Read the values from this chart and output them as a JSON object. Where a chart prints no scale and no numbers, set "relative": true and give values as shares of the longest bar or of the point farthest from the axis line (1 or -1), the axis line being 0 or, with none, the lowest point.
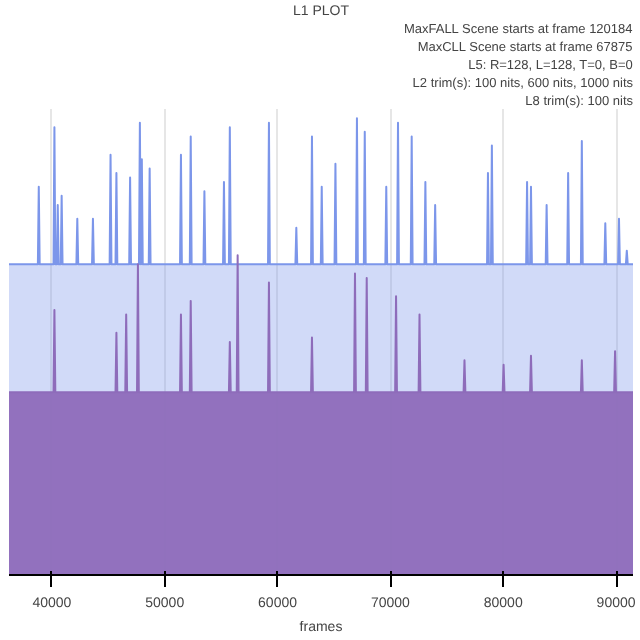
{
  "chart_data": {
    "type": "area",
    "title": "L1 PLOT",
    "xlabel": "frames",
    "relative": true,
    "grid": "x",
    "annotations": [
      "MaxFALL Scene starts at frame 120184",
      "MaxCLL Scene starts at frame 67875",
      "L5: R=128, L=128, T=0, B=0",
      "L2 trim(s): 100 nits, 600 nits, 1000 nits",
      "L8 trim(s): 100 nits"
    ],
    "xlim": [
      36200,
      91500
    ],
    "xticks": [
      40000,
      50000,
      60000,
      70000,
      80000,
      90000
    ],
    "series": [
      {
        "color": "#7c96ea",
        "x": [
          36200,
          38759,
          38839,
          38919,
          40145,
          40225,
          40305,
          40440,
          40520,
          40600,
          40786,
          40866,
          40946,
          42173,
          42253,
          42333,
          43559,
          43639,
          43719,
          45119,
          45199,
          45279,
          45639,
          45719,
          45799,
          46852,
          46932,
          47012,
          47719,
          47799,
          47879,
          47892,
          47972,
          48052,
          48585,
          48665,
          48745,
          51358,
          51438,
          51518,
          52224,
          52304,
          52384,
          53437,
          53517,
          53597,
          55170,
          55250,
          55330,
          55690,
          55770,
          55850,
          59156,
          59236,
          59316,
          61583,
          61663,
          61743,
          62969,
          63049,
          63129,
          63835,
          63915,
          63995,
          65049,
          65129,
          65209,
          66955,
          67035,
          67115,
          67648,
          67728,
          67808,
          69554,
          69634,
          69714,
          70594,
          70674,
          70754,
          71807,
          71887,
          71967,
          73020,
          73100,
          73180,
          73887,
          73967,
          74047,
          78566,
          78646,
          78726,
          78913,
          78993,
          79073,
          82032,
          82112,
          82192,
          82379,
          82459,
          82539,
          83765,
          83845,
          83925,
          85672,
          85752,
          85832,
          86885,
          86965,
          87045,
          88965,
          89045,
          89125,
          90178,
          90258,
          90338,
          90871,
          90951,
          91031,
          91500
        ],
        "values": [
          0.68,
          0.68,
          0.85,
          0.68,
          0.68,
          0.98,
          0.68,
          0.68,
          0.81,
          0.68,
          0.68,
          0.83,
          0.68,
          0.68,
          0.78,
          0.68,
          0.68,
          0.78,
          0.68,
          0.68,
          0.92,
          0.68,
          0.68,
          0.88,
          0.68,
          0.68,
          0.87,
          0.68,
          0.68,
          0.99,
          0.68,
          0.68,
          0.91,
          0.68,
          0.68,
          0.89,
          0.68,
          0.68,
          0.92,
          0.68,
          0.68,
          0.96,
          0.68,
          0.68,
          0.84,
          0.68,
          0.68,
          0.86,
          0.68,
          0.68,
          0.98,
          0.68,
          0.68,
          0.99,
          0.68,
          0.68,
          0.76,
          0.68,
          0.68,
          0.96,
          0.68,
          0.68,
          0.85,
          0.68,
          0.68,
          0.9,
          0.68,
          0.68,
          1.0,
          0.68,
          0.68,
          0.97,
          0.68,
          0.68,
          0.85,
          0.68,
          0.68,
          0.99,
          0.68,
          0.68,
          0.96,
          0.68,
          0.68,
          0.86,
          0.68,
          0.68,
          0.81,
          0.68,
          0.68,
          0.88,
          0.68,
          0.68,
          0.94,
          0.68,
          0.68,
          0.86,
          0.68,
          0.68,
          0.85,
          0.68,
          0.68,
          0.81,
          0.68,
          0.68,
          0.88,
          0.68,
          0.68,
          0.95,
          0.68,
          0.68,
          0.77,
          0.68,
          0.68,
          0.78,
          0.68,
          0.68,
          0.71,
          0.68,
          0.68
        ]
      },
      {
        "color": "#8e6cba",
        "x": [
          36200,
          40145,
          40225,
          40305,
          45639,
          45719,
          45799,
          46505,
          46585,
          46665,
          47545,
          47625,
          47705,
          51358,
          51438,
          51518,
          52224,
          52304,
          52384,
          55690,
          55770,
          55850,
          56383,
          56463,
          56543,
          59156,
          59236,
          59316,
          62969,
          63049,
          63129,
          66782,
          66862,
          66942,
          67822,
          67902,
          67982,
          70421,
          70501,
          70581,
          72500,
          72580,
          72660,
          76486,
          76566,
          76646,
          79952,
          80032,
          80112,
          82379,
          82459,
          82539,
          86885,
          86965,
          87045,
          89831,
          89911,
          89991,
          91500
        ],
        "values": [
          0.4,
          0.4,
          0.58,
          0.4,
          0.4,
          0.53,
          0.4,
          0.4,
          0.57,
          0.4,
          0.4,
          0.68,
          0.4,
          0.4,
          0.57,
          0.4,
          0.4,
          0.6,
          0.4,
          0.4,
          0.51,
          0.4,
          0.4,
          0.7,
          0.4,
          0.4,
          0.64,
          0.4,
          0.4,
          0.52,
          0.4,
          0.4,
          0.66,
          0.4,
          0.4,
          0.65,
          0.4,
          0.4,
          0.61,
          0.4,
          0.4,
          0.57,
          0.4,
          0.4,
          0.47,
          0.4,
          0.4,
          0.46,
          0.4,
          0.4,
          0.48,
          0.4,
          0.4,
          0.47,
          0.4,
          0.4,
          0.49,
          0.4,
          0.4
        ]
      }
    ]
  }
}
